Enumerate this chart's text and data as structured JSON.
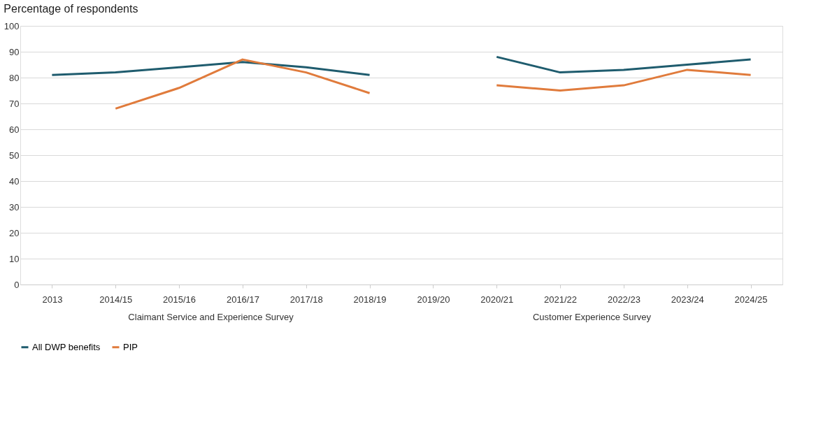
{
  "chart_data": {
    "type": "line",
    "title": "Percentage of respondents",
    "categories": [
      "2013",
      "2014/15",
      "2015/16",
      "2016/17",
      "2017/18",
      "2018/19",
      "2019/20",
      "2020/21",
      "2021/22",
      "2022/23",
      "2023/24",
      "2024/25"
    ],
    "series": [
      {
        "name": "All DWP benefits",
        "color": "#1f5c6e",
        "values": [
          81,
          82,
          84,
          86,
          84,
          81,
          null,
          88,
          82,
          83,
          85,
          87
        ]
      },
      {
        "name": "PIP",
        "color": "#e07b3c",
        "values": [
          null,
          68,
          76,
          87,
          82,
          74,
          null,
          77,
          75,
          77,
          83,
          81
        ]
      }
    ],
    "ylim": [
      0,
      100
    ],
    "yticks": [
      0,
      10,
      20,
      30,
      40,
      50,
      60,
      70,
      80,
      90,
      100
    ],
    "grid": "y",
    "legend": "bottom",
    "marker": "none",
    "line_style": "solid",
    "annotations": [
      "Claimant Service and Experience Survey",
      "Customer Experience Survey"
    ]
  }
}
